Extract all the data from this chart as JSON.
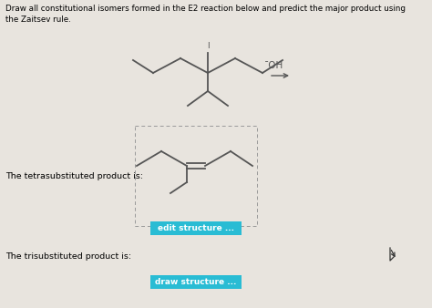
{
  "title_line1": "Draw all constitutional isomers formed in the E2 reaction below and predict the major product using",
  "title_line2": "the Zaitsev rule.",
  "background_color": "#e8e4de",
  "text_color": "#000000",
  "label_tetra": "The tetrasubstituted product is:",
  "label_tri": "The trisubstituted product is:",
  "btn1_text": "edit structure ...",
  "btn2_text": "draw structure ...",
  "btn_color": "#29bcd4",
  "btn_text_color": "#ffffff",
  "oh_label": "¯OH",
  "dashed_box_color": "#999999",
  "line_color": "#555555",
  "line_color_mol": "#555555"
}
